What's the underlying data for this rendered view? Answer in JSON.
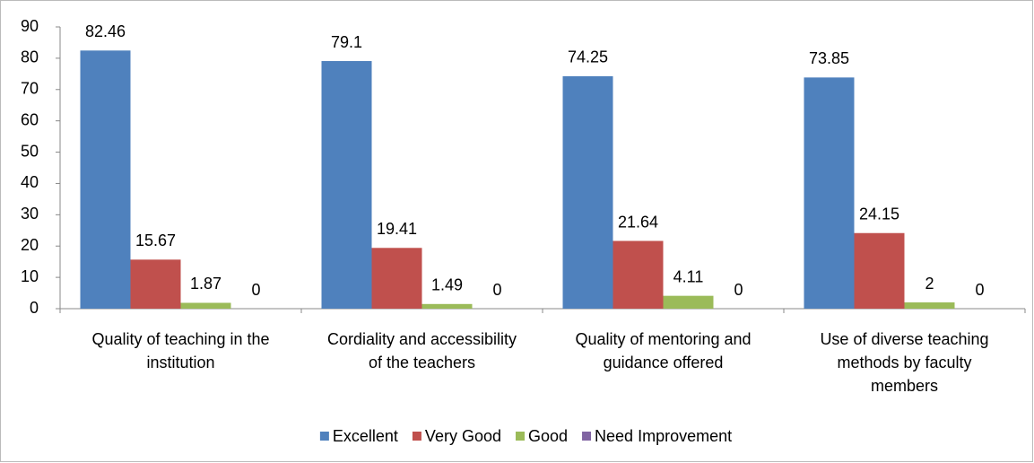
{
  "chart_data": {
    "type": "bar",
    "categories": [
      "Quality of teaching in the institution",
      "Cordiality and accessibility of the teachers",
      "Quality of mentoring and guidance offered",
      "Use of diverse teaching methods by faculty members"
    ],
    "series": [
      {
        "name": "Excellent",
        "color": "#4f81bd",
        "values": [
          82.46,
          79.1,
          74.25,
          73.85
        ]
      },
      {
        "name": "Very Good",
        "color": "#c0504d",
        "values": [
          15.67,
          19.41,
          21.64,
          24.15
        ]
      },
      {
        "name": "Good",
        "color": "#9bbb59",
        "values": [
          1.87,
          1.49,
          4.11,
          2
        ]
      },
      {
        "name": "Need Improvement",
        "color": "#8064a2",
        "values": [
          0,
          0,
          0,
          0
        ]
      }
    ],
    "ylim": [
      0,
      90
    ],
    "yticks": [
      0,
      10,
      20,
      30,
      40,
      50,
      60,
      70,
      80,
      90
    ],
    "grid": false,
    "legend": "bottom"
  }
}
